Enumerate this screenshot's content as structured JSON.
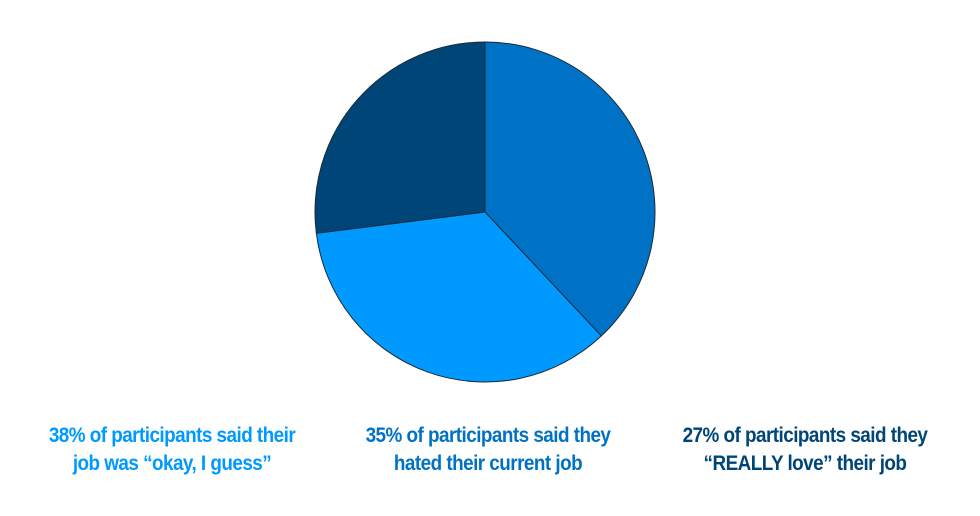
{
  "chart_data": {
    "type": "pie",
    "slices": [
      {
        "value": 38,
        "color": "#0072c6",
        "label_lines": [
          "38% of participants said their",
          "job was “okay, I guess”"
        ]
      },
      {
        "value": 35,
        "color": "#0099ff",
        "label_lines": [
          "35% of participants said they",
          "hated their current job"
        ]
      },
      {
        "value": 27,
        "color": "#004577",
        "label_lines": [
          "27% of participants said they",
          "“REALLY love” their job"
        ]
      }
    ],
    "label_colors": [
      "#0099ff",
      "#0072c6",
      "#004577"
    ],
    "start_angle_deg": 0,
    "direction": "clockwise",
    "legend": "bottom"
  }
}
